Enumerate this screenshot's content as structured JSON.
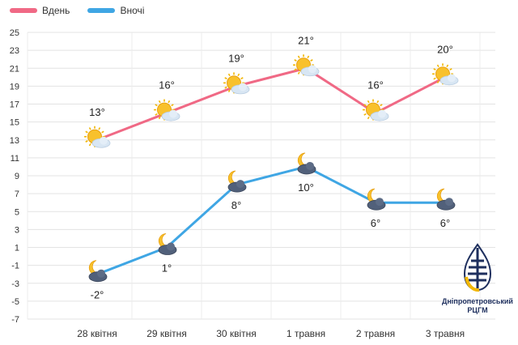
{
  "chart_data": {
    "type": "line",
    "categories": [
      "28 квітня",
      "29 квітня",
      "30 квітня",
      "1 травня",
      "2 травня",
      "3 травня"
    ],
    "series": [
      {
        "name": "Вдень",
        "values": [
          13,
          16,
          19,
          21,
          16,
          20
        ],
        "labels": [
          "13°",
          "16°",
          "19°",
          "21°",
          "16°",
          "20°"
        ],
        "color": "#f06985",
        "icon": "sun-cloud-icon",
        "label_position": "above"
      },
      {
        "name": "Вночі",
        "values": [
          -2,
          1,
          8,
          10,
          6,
          6
        ],
        "labels": [
          "-2°",
          "1°",
          "8°",
          "10°",
          "6°",
          "6°"
        ],
        "color": "#3fa6e4",
        "icon": "moon-cloud-icon",
        "label_position": "below"
      }
    ],
    "y_ticks": [
      "25",
      "23",
      "21",
      "19",
      "17",
      "15",
      "13",
      "11",
      "9",
      "7",
      "5",
      "3",
      "1",
      "-1",
      "-3",
      "-5",
      "-7"
    ],
    "ylim": [
      -7,
      25
    ],
    "grid": true,
    "legend": "top-left",
    "title": "",
    "xlabel": "",
    "ylabel": ""
  },
  "logo": {
    "text_line1": "Дніпропетровський",
    "text_line2": "РЦГМ",
    "colors": {
      "dark": "#1e2f5e",
      "gold": "#f2b705"
    }
  }
}
